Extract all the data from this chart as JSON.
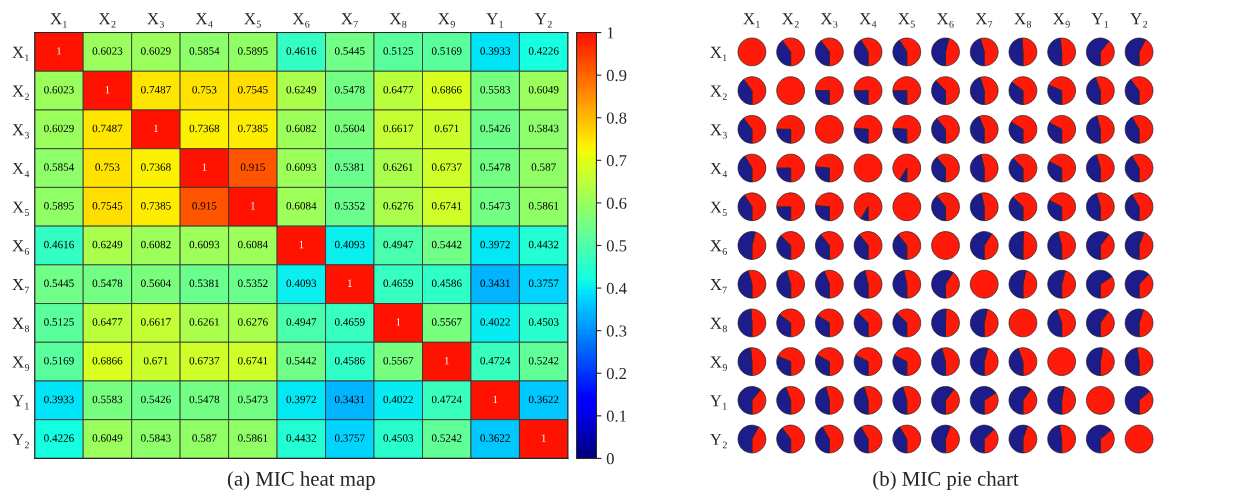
{
  "chart_data": [
    {
      "type": "heatmap",
      "title": "(a) MIC heat map",
      "categories": [
        "X₁",
        "X₂",
        "X₃",
        "X₄",
        "X₅",
        "X₆",
        "X₇",
        "X₈",
        "X₉",
        "Y₁",
        "Y₂"
      ],
      "y_categories": [
        "X₁",
        "X₂",
        "X₃",
        "X₄",
        "X₅",
        "X₆",
        "X₇",
        "X₈",
        "X₉",
        "Y₁",
        "Y₂"
      ],
      "cells": [
        [
          1,
          0.6023,
          0.6029,
          0.5854,
          0.5895,
          0.4616,
          0.5445,
          0.5125,
          0.5169,
          0.3933,
          0.4226
        ],
        [
          0.6023,
          1,
          0.7487,
          0.753,
          0.7545,
          0.6249,
          0.5478,
          0.6477,
          0.6866,
          0.5583,
          0.6049
        ],
        [
          0.6029,
          0.7487,
          1,
          0.7368,
          0.7385,
          0.6082,
          0.5604,
          0.6617,
          0.671,
          0.5426,
          0.5843
        ],
        [
          0.5854,
          0.753,
          0.7368,
          1,
          0.915,
          0.6093,
          0.5381,
          0.6261,
          0.6737,
          0.5478,
          0.587
        ],
        [
          0.5895,
          0.7545,
          0.7385,
          0.915,
          1,
          0.6084,
          0.5352,
          0.6276,
          0.6741,
          0.5473,
          0.5861
        ],
        [
          0.4616,
          0.6249,
          0.6082,
          0.6093,
          0.6084,
          1,
          0.4093,
          0.4947,
          0.5442,
          0.3972,
          0.4432
        ],
        [
          0.5445,
          0.5478,
          0.5604,
          0.5381,
          0.5352,
          0.4093,
          1,
          0.4659,
          0.4586,
          0.3431,
          0.3757
        ],
        [
          0.5125,
          0.6477,
          0.6617,
          0.6261,
          0.6276,
          0.4947,
          0.4659,
          1,
          0.5567,
          0.4022,
          0.4503
        ],
        [
          0.5169,
          0.6866,
          0.671,
          0.6737,
          0.6741,
          0.5442,
          0.4586,
          0.5567,
          1,
          0.4724,
          0.5242
        ],
        [
          0.3933,
          0.5583,
          0.5426,
          0.5478,
          0.5473,
          0.3972,
          0.3431,
          0.4022,
          0.4724,
          1,
          0.3622
        ],
        [
          0.4226,
          0.6049,
          0.5843,
          0.587,
          0.5861,
          0.4432,
          0.3757,
          0.4503,
          0.5242,
          0.3622,
          1
        ]
      ],
      "data_labels": true,
      "clim": [
        0,
        1
      ],
      "cticks": [
        0,
        0.1,
        0.2,
        0.3,
        0.4,
        0.5,
        0.6,
        0.7,
        0.8,
        0.9,
        1
      ]
    },
    {
      "type": "other",
      "title": "(b) MIC pie chart",
      "categories": [
        "X₁",
        "X₂",
        "X₃",
        "X₄",
        "X₅",
        "X₆",
        "X₇",
        "X₈",
        "X₉",
        "Y₁",
        "Y₂"
      ],
      "y_categories": [
        "X₁",
        "X₂",
        "X₃",
        "X₄",
        "X₅",
        "X₆",
        "X₇",
        "X₈",
        "X₉",
        "Y₁",
        "Y₂"
      ],
      "colors": [
        "#ff1a0a",
        "#1c1c8a"
      ]
    }
  ]
}
